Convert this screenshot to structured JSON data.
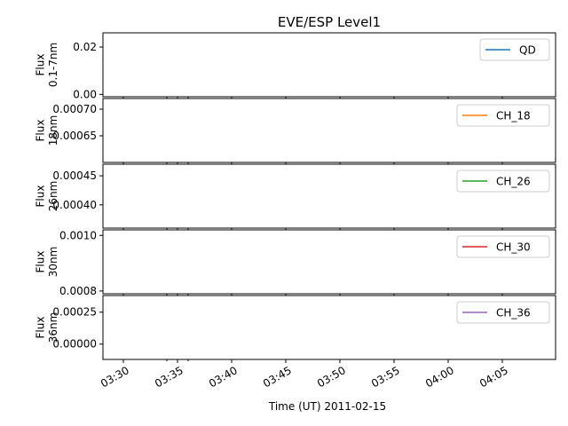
{
  "chart_data": {
    "type": "line",
    "title": "EVE/ESP Level1",
    "xlabel": "Time (UT) 2011-02-15",
    "x_ticks": [
      "03:30",
      "03:35",
      "03:40",
      "03:45",
      "03:50",
      "03:55",
      "04:00",
      "04:05"
    ],
    "legend_position": "top-right",
    "panels": [
      {
        "ylabel": [
          "Flux",
          "0.1-7nm"
        ],
        "y_ticks": [
          "0.00",
          "0.02"
        ],
        "ylim": [
          -0.001,
          0.026
        ],
        "series": [
          {
            "name": "QD",
            "color": "#1f77b4",
            "values": []
          }
        ]
      },
      {
        "ylabel": [
          "Flux",
          "18nm"
        ],
        "y_ticks": [
          "0.00065",
          "0.00070"
        ],
        "ylim": [
          0.0006,
          0.00072
        ],
        "series": [
          {
            "name": "CH_18",
            "color": "#ff7f0e",
            "values": []
          }
        ]
      },
      {
        "ylabel": [
          "Flux",
          "26nm"
        ],
        "y_ticks": [
          "0.00040",
          "0.00045"
        ],
        "ylim": [
          0.00036,
          0.00047
        ],
        "series": [
          {
            "name": "CH_26",
            "color": "#2ca02c",
            "values": []
          }
        ]
      },
      {
        "ylabel": [
          "Flux",
          "30nm"
        ],
        "y_ticks": [
          "0.0008",
          "0.0010"
        ],
        "ylim": [
          0.00079,
          0.00102
        ],
        "series": [
          {
            "name": "CH_30",
            "color": "#d62728",
            "values": []
          }
        ]
      },
      {
        "ylabel": [
          "Flux",
          "36nm"
        ],
        "y_ticks": [
          "0.00000",
          "0.00025"
        ],
        "ylim": [
          -0.00012,
          0.00038
        ],
        "series": [
          {
            "name": "CH_36",
            "color": "#9467bd",
            "values": []
          }
        ]
      }
    ]
  }
}
